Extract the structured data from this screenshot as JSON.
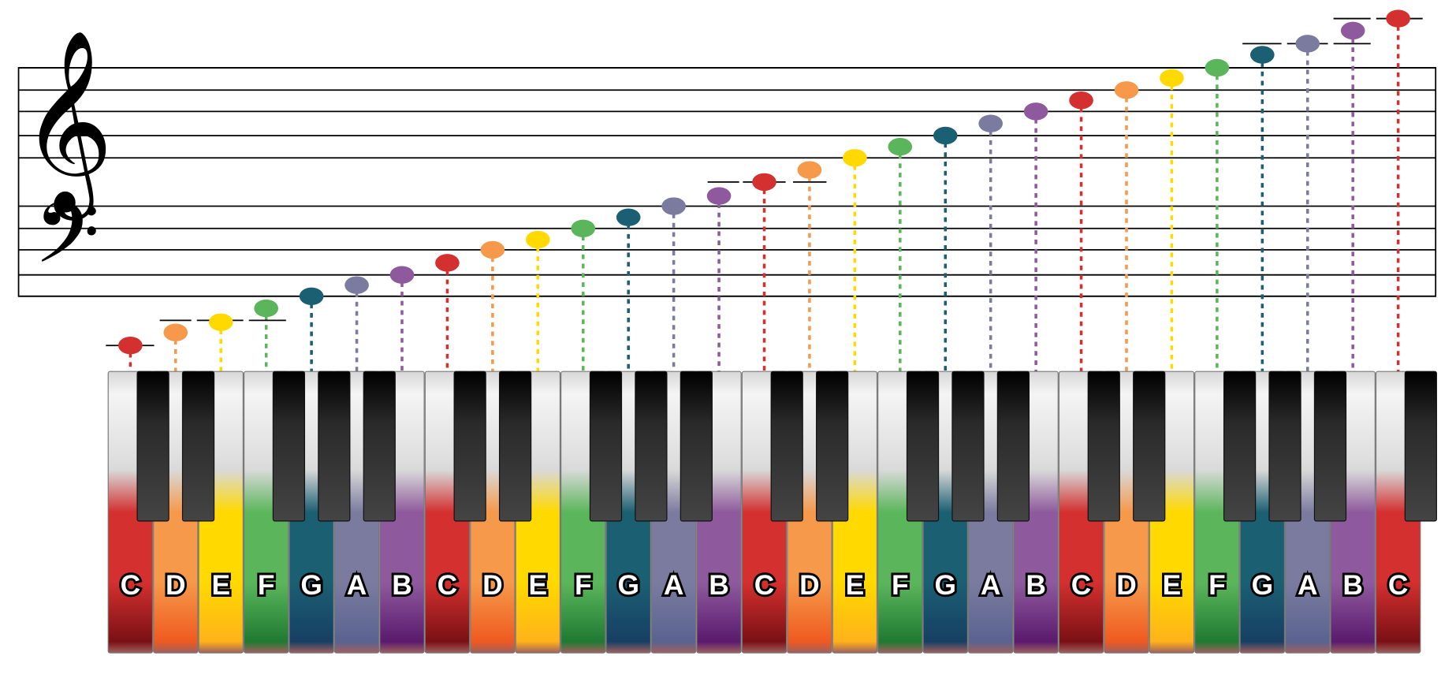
{
  "clefs": {
    "treble": "treble-clef",
    "bass": "bass-clef"
  },
  "colors": {
    "C": "#d3302f",
    "D": "#f6994a",
    "E": "#ffd900",
    "F": "#5bb65b",
    "G": "#1b5f73",
    "A": "#7b7b9f",
    "B": "#8f5a9d"
  },
  "key_bottom_colors": {
    "C": "#7a1015",
    "D": "#ef5a20",
    "E": "#ffb21a",
    "F": "#1f7a32",
    "G": "#173f63",
    "A": "#596390",
    "B": "#5a1a6e"
  },
  "keys": [
    "C",
    "D",
    "E",
    "F",
    "G",
    "A",
    "B",
    "C",
    "D",
    "E",
    "F",
    "G",
    "A",
    "B",
    "C",
    "D",
    "E",
    "F",
    "G",
    "A",
    "B",
    "C",
    "D",
    "E",
    "F",
    "G",
    "A",
    "B",
    "C"
  ]
}
